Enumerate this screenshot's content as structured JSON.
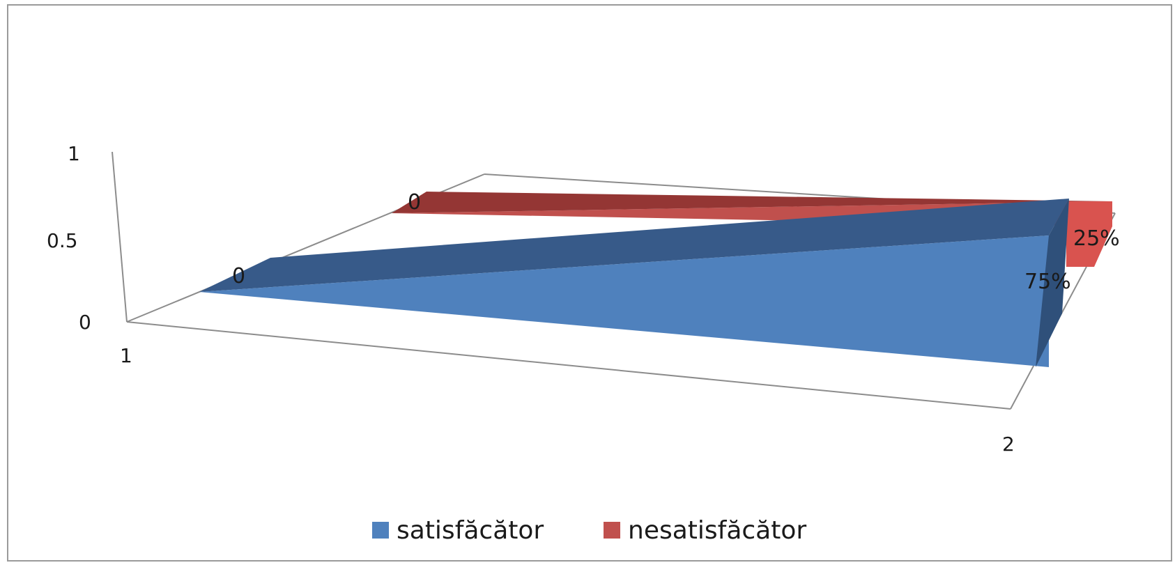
{
  "chart_data": {
    "type": "area",
    "view": "3d",
    "categories": [
      "1",
      "2"
    ],
    "ylim": [
      0,
      1
    ],
    "yticks": [
      "0",
      "0.5",
      "1"
    ],
    "series": [
      {
        "name": "satisfăcător",
        "values": [
          0,
          0.75
        ],
        "labels": [
          "0",
          "75%"
        ],
        "color": "#4f81bd"
      },
      {
        "name": "nesatisfăcător",
        "values": [
          0,
          0.25
        ],
        "labels": [
          "0",
          "25%"
        ],
        "color": "#c0504d"
      }
    ],
    "legend_position": "bottom",
    "grid": false
  }
}
